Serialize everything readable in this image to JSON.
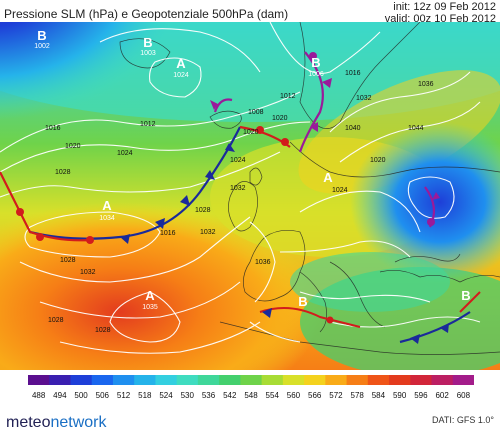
{
  "header": {
    "title": "Pressione SLM (hPa) e Geopotenziale 500hPa (dam)",
    "init": "init: 12z 09 Feb 2012",
    "valid": "valid: 00z 10 Feb 2012"
  },
  "map": {
    "pressure_centers": [
      {
        "type": "B",
        "value": "1002"
      },
      {
        "type": "B",
        "value": "1003"
      },
      {
        "type": "A",
        "value": "1024"
      },
      {
        "type": "B",
        "value": "1006"
      },
      {
        "type": "A",
        "value": "1034"
      },
      {
        "type": "A",
        "value": "1035"
      },
      {
        "type": "A",
        "value": ""
      },
      {
        "type": "B",
        "value": ""
      },
      {
        "type": "B",
        "value": ""
      }
    ],
    "isobar_labels": [
      "1016",
      "1020",
      "1024",
      "1028",
      "1012",
      "1008",
      "1012",
      "1020",
      "1016",
      "1032",
      "1036",
      "1040",
      "1044",
      "1028",
      "1032",
      "1024",
      "1020",
      "1028",
      "1032",
      "1036",
      "1024",
      "1020",
      "1032",
      "1028",
      "1028",
      "1016"
    ]
  },
  "colorbar": {
    "ticks": [
      "488",
      "494",
      "500",
      "506",
      "512",
      "518",
      "524",
      "530",
      "536",
      "542",
      "548",
      "554",
      "560",
      "566",
      "572",
      "578",
      "584",
      "590",
      "596",
      "602",
      "608"
    ],
    "colors": [
      "#5b0f8f",
      "#3a1fb0",
      "#1e3fd8",
      "#1a66ee",
      "#1f8fef",
      "#25b3ea",
      "#33cfe0",
      "#3fdcc0",
      "#3fd79a",
      "#44d06e",
      "#6fd34a",
      "#a8dc35",
      "#d8e02a",
      "#f4d21e",
      "#f9ab18",
      "#f67e16",
      "#ef5418",
      "#e33b1e",
      "#d2263a",
      "#bc1f63",
      "#a31c8a"
    ]
  },
  "footer": {
    "logo_main": "meteo",
    "logo_accent": "network",
    "dati": "DATI:  GFS  1.0°"
  }
}
